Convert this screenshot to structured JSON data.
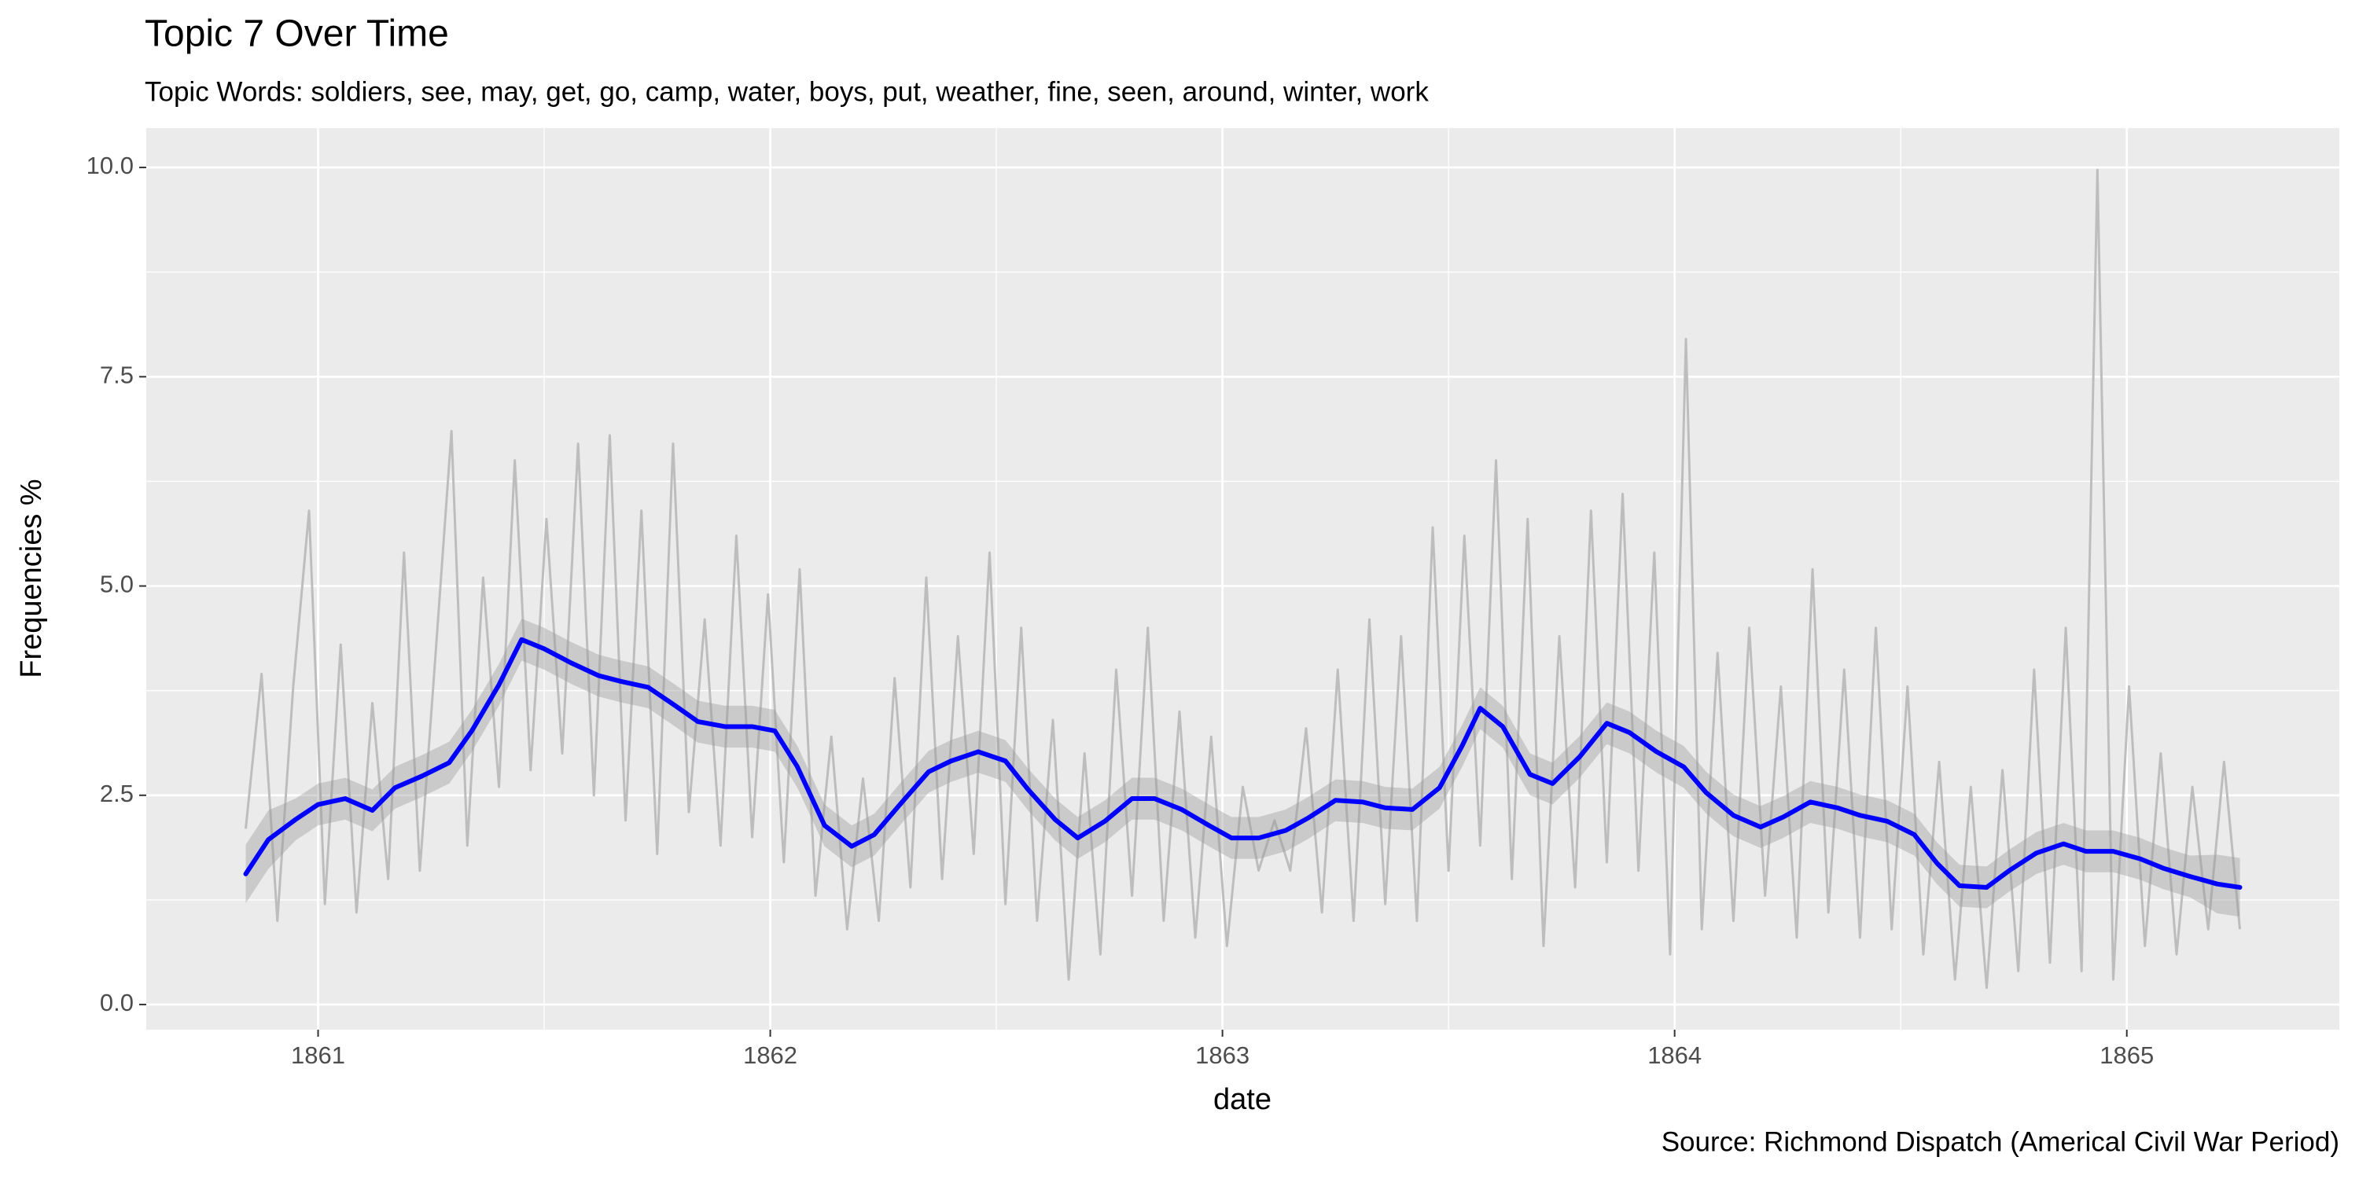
{
  "chart_data": {
    "type": "line",
    "title": "Topic 7 Over Time",
    "subtitle": "Topic Words: soldiers, see, may, get, go, camp, water, boys, put, weather, fine, seen, around, winter, work",
    "xlabel": "date",
    "ylabel": "Frequencies %",
    "caption": "Source: Richmond Dispatch (Americal Civil War Period)",
    "xlim": [
      1860.62,
      1865.47
    ],
    "ylim": [
      -0.3,
      10.47
    ],
    "xticks": [
      1861,
      1862,
      1863,
      1864,
      1865
    ],
    "yticks": [
      {
        "value": 0,
        "label": "0.0"
      },
      {
        "value": 2.5,
        "label": "2.5"
      },
      {
        "value": 5,
        "label": "5.0"
      },
      {
        "value": 7.5,
        "label": "7.5"
      },
      {
        "value": 10,
        "label": "10.0"
      }
    ],
    "grid": true,
    "raw": {
      "color": "#bdbdbd",
      "x": [
        1860.84,
        1860.875,
        1860.91,
        1860.945,
        1860.98,
        1861.015,
        1861.05,
        1861.085,
        1861.12,
        1861.155,
        1861.19,
        1861.225,
        1861.26,
        1861.295,
        1861.33,
        1861.365,
        1861.4,
        1861.435,
        1861.47,
        1861.505,
        1861.54,
        1861.575,
        1861.61,
        1861.645,
        1861.68,
        1861.715,
        1861.75,
        1861.785,
        1861.82,
        1861.855,
        1861.89,
        1861.925,
        1861.96,
        1861.995,
        1862.03,
        1862.065,
        1862.1,
        1862.135,
        1862.17,
        1862.205,
        1862.24,
        1862.275,
        1862.31,
        1862.345,
        1862.38,
        1862.415,
        1862.45,
        1862.485,
        1862.52,
        1862.555,
        1862.59,
        1862.625,
        1862.66,
        1862.695,
        1862.73,
        1862.765,
        1862.8,
        1862.835,
        1862.87,
        1862.905,
        1862.94,
        1862.975,
        1863.01,
        1863.045,
        1863.08,
        1863.115,
        1863.15,
        1863.185,
        1863.22,
        1863.255,
        1863.29,
        1863.325,
        1863.36,
        1863.395,
        1863.43,
        1863.465,
        1863.5,
        1863.535,
        1863.57,
        1863.605,
        1863.64,
        1863.675,
        1863.71,
        1863.745,
        1863.78,
        1863.815,
        1863.85,
        1863.885,
        1863.92,
        1863.955,
        1863.99,
        1864.025,
        1864.06,
        1864.095,
        1864.13,
        1864.165,
        1864.2,
        1864.235,
        1864.27,
        1864.305,
        1864.34,
        1864.375,
        1864.41,
        1864.445,
        1864.48,
        1864.515,
        1864.55,
        1864.585,
        1864.62,
        1864.655,
        1864.69,
        1864.725,
        1864.76,
        1864.795,
        1864.83,
        1864.865,
        1864.9,
        1864.935,
        1864.97,
        1865.005,
        1865.04,
        1865.075,
        1865.11,
        1865.145,
        1865.18,
        1865.215,
        1865.25
      ],
      "values": [
        2.1,
        3.95,
        1.0,
        3.8,
        5.9,
        1.2,
        4.3,
        1.1,
        3.6,
        1.5,
        5.4,
        1.6,
        4.2,
        6.85,
        1.9,
        5.1,
        2.6,
        6.5,
        2.8,
        5.8,
        3.0,
        6.7,
        2.5,
        6.8,
        2.2,
        5.9,
        1.8,
        6.7,
        2.3,
        4.6,
        1.9,
        5.6,
        2.0,
        4.9,
        1.7,
        5.2,
        1.3,
        3.2,
        0.9,
        2.7,
        1.0,
        3.9,
        1.4,
        5.1,
        1.5,
        4.4,
        1.8,
        5.4,
        1.2,
        4.5,
        1.0,
        3.4,
        0.3,
        3.0,
        0.6,
        4.0,
        1.3,
        4.5,
        1.0,
        3.5,
        0.8,
        3.2,
        0.7,
        2.6,
        1.6,
        2.2,
        1.6,
        3.3,
        1.1,
        4.0,
        1.0,
        4.6,
        1.2,
        4.4,
        1.0,
        5.7,
        1.6,
        5.6,
        1.9,
        6.5,
        1.5,
        5.8,
        0.7,
        4.4,
        1.4,
        5.9,
        1.7,
        6.1,
        1.6,
        5.4,
        0.6,
        7.95,
        0.9,
        4.2,
        1.0,
        4.5,
        1.3,
        3.8,
        0.8,
        5.2,
        1.1,
        4.0,
        0.8,
        4.5,
        0.9,
        3.8,
        0.6,
        2.9,
        0.3,
        2.6,
        0.2,
        2.8,
        0.4,
        4.0,
        0.5,
        4.5,
        0.4,
        9.97,
        0.3,
        3.8,
        0.7,
        3.0,
        0.6,
        2.6,
        0.9,
        2.9,
        0.9
      ]
    },
    "smooth": {
      "color": "#0000ff",
      "band_color": "#999999",
      "x": [
        1860.84,
        1860.89,
        1860.95,
        1861.0,
        1861.06,
        1861.12,
        1861.17,
        1861.23,
        1861.29,
        1861.34,
        1861.4,
        1861.45,
        1861.5,
        1861.56,
        1861.62,
        1861.67,
        1861.73,
        1861.79,
        1861.84,
        1861.9,
        1861.96,
        1862.01,
        1862.06,
        1862.12,
        1862.18,
        1862.23,
        1862.29,
        1862.35,
        1862.4,
        1862.46,
        1862.52,
        1862.57,
        1862.63,
        1862.68,
        1862.74,
        1862.8,
        1862.85,
        1862.91,
        1862.97,
        1863.02,
        1863.08,
        1863.14,
        1863.19,
        1863.25,
        1863.31,
        1863.36,
        1863.42,
        1863.48,
        1863.53,
        1863.57,
        1863.62,
        1863.68,
        1863.73,
        1863.79,
        1863.85,
        1863.9,
        1863.96,
        1864.02,
        1864.07,
        1864.13,
        1864.19,
        1864.24,
        1864.3,
        1864.36,
        1864.41,
        1864.47,
        1864.53,
        1864.58,
        1864.63,
        1864.69,
        1864.74,
        1864.8,
        1864.86,
        1864.91,
        1864.97,
        1865.03,
        1865.08,
        1865.14,
        1865.2,
        1865.25
      ],
      "values": [
        1.56,
        1.97,
        2.21,
        2.39,
        2.46,
        2.32,
        2.59,
        2.73,
        2.89,
        3.27,
        3.82,
        4.36,
        4.25,
        4.08,
        3.93,
        3.86,
        3.79,
        3.57,
        3.38,
        3.32,
        3.32,
        3.27,
        2.84,
        2.14,
        1.89,
        2.03,
        2.41,
        2.78,
        2.91,
        3.02,
        2.91,
        2.57,
        2.21,
        1.99,
        2.19,
        2.46,
        2.46,
        2.33,
        2.14,
        1.99,
        1.99,
        2.08,
        2.23,
        2.44,
        2.42,
        2.35,
        2.33,
        2.59,
        3.09,
        3.54,
        3.32,
        2.75,
        2.64,
        2.96,
        3.36,
        3.25,
        3.02,
        2.84,
        2.53,
        2.26,
        2.12,
        2.24,
        2.42,
        2.35,
        2.26,
        2.19,
        2.03,
        1.69,
        1.42,
        1.4,
        1.6,
        1.81,
        1.92,
        1.83,
        1.83,
        1.74,
        1.63,
        1.53,
        1.44,
        1.4
      ],
      "lower": [
        1.21,
        1.62,
        1.96,
        2.14,
        2.21,
        2.07,
        2.34,
        2.48,
        2.64,
        3.02,
        3.57,
        4.11,
        4.0,
        3.83,
        3.68,
        3.61,
        3.54,
        3.32,
        3.13,
        3.07,
        3.07,
        3.02,
        2.59,
        1.89,
        1.64,
        1.78,
        2.16,
        2.53,
        2.66,
        2.77,
        2.66,
        2.32,
        1.96,
        1.74,
        1.94,
        2.21,
        2.21,
        2.08,
        1.89,
        1.74,
        1.74,
        1.83,
        1.98,
        2.19,
        2.17,
        2.1,
        2.08,
        2.34,
        2.84,
        3.29,
        3.07,
        2.5,
        2.39,
        2.71,
        3.11,
        3.0,
        2.77,
        2.59,
        2.28,
        2.01,
        1.87,
        1.99,
        2.17,
        2.1,
        2.01,
        1.94,
        1.78,
        1.44,
        1.17,
        1.15,
        1.35,
        1.56,
        1.67,
        1.58,
        1.58,
        1.49,
        1.38,
        1.28,
        1.09,
        1.05
      ],
      "upper": [
        1.91,
        2.32,
        2.46,
        2.64,
        2.71,
        2.57,
        2.84,
        2.98,
        3.14,
        3.52,
        4.07,
        4.61,
        4.5,
        4.33,
        4.18,
        4.11,
        4.04,
        3.82,
        3.63,
        3.57,
        3.57,
        3.52,
        3.09,
        2.39,
        2.14,
        2.28,
        2.66,
        3.03,
        3.16,
        3.27,
        3.16,
        2.82,
        2.46,
        2.24,
        2.44,
        2.71,
        2.71,
        2.58,
        2.39,
        2.24,
        2.24,
        2.33,
        2.48,
        2.69,
        2.67,
        2.6,
        2.58,
        2.84,
        3.34,
        3.79,
        3.57,
        3.0,
        2.89,
        3.21,
        3.61,
        3.5,
        3.27,
        3.09,
        2.78,
        2.51,
        2.37,
        2.49,
        2.67,
        2.6,
        2.51,
        2.44,
        2.28,
        1.94,
        1.67,
        1.65,
        1.85,
        2.06,
        2.17,
        2.08,
        2.08,
        1.99,
        1.88,
        1.78,
        1.79,
        1.75
      ]
    }
  }
}
